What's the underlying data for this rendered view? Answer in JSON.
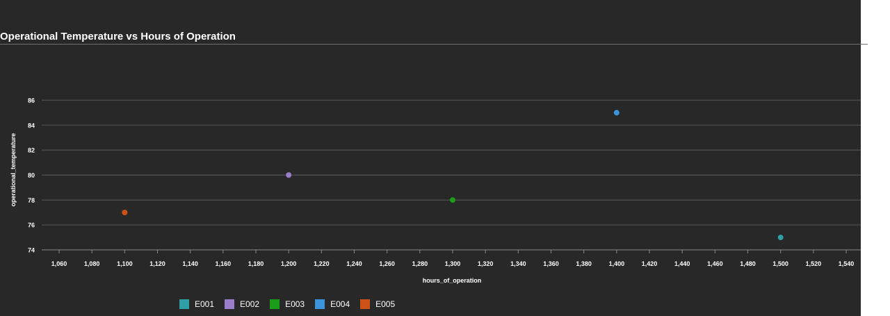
{
  "chart_data": {
    "type": "scatter",
    "title": "Operational Temperature vs Hours of Operation",
    "xlabel": "hours_of_operation",
    "ylabel": "operational_temperature",
    "xlim": [
      1050,
      1545
    ],
    "ylim": [
      74,
      86
    ],
    "xticks": [
      1060,
      1080,
      1100,
      1120,
      1140,
      1160,
      1180,
      1200,
      1220,
      1240,
      1260,
      1280,
      1300,
      1320,
      1340,
      1360,
      1380,
      1400,
      1420,
      1440,
      1460,
      1480,
      1500,
      1520,
      1540
    ],
    "xtick_labels": [
      "1,060",
      "1,080",
      "1,100",
      "1,120",
      "1,140",
      "1,160",
      "1,180",
      "1,200",
      "1,220",
      "1,240",
      "1,260",
      "1,280",
      "1,300",
      "1,320",
      "1,340",
      "1,360",
      "1,380",
      "1,400",
      "1,420",
      "1,440",
      "1,460",
      "1,480",
      "1,500",
      "1,520",
      "1,540"
    ],
    "yticks": [
      74,
      76,
      78,
      80,
      82,
      84,
      86
    ],
    "ytick_labels": [
      "74",
      "76",
      "78",
      "80",
      "82",
      "84",
      "86"
    ],
    "grid": true,
    "legend_position": "bottom",
    "series": [
      {
        "name": "E001",
        "color": "#2ea0a6",
        "points": [
          {
            "x": 1500,
            "y": 75
          }
        ]
      },
      {
        "name": "E002",
        "color": "#9b7dcc",
        "points": [
          {
            "x": 1200,
            "y": 80
          }
        ]
      },
      {
        "name": "E003",
        "color": "#1a9e1a",
        "points": [
          {
            "x": 1300,
            "y": 78
          }
        ]
      },
      {
        "name": "E004",
        "color": "#3b93dc",
        "points": [
          {
            "x": 1400,
            "y": 85
          }
        ]
      },
      {
        "name": "E005",
        "color": "#cc5218",
        "points": [
          {
            "x": 1100,
            "y": 77
          }
        ]
      }
    ]
  }
}
